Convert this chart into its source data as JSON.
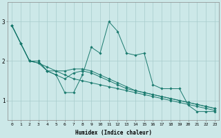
{
  "xlabel": "Humidex (Indice chaleur)",
  "ylabel": "",
  "bg_color": "#cce8e8",
  "line_color": "#1a7a6e",
  "xlim": [
    -0.5,
    23.5
  ],
  "ylim": [
    0.5,
    3.5
  ],
  "yticks": [
    1,
    2,
    3
  ],
  "xticks": [
    0,
    1,
    2,
    3,
    4,
    5,
    6,
    7,
    8,
    9,
    10,
    11,
    12,
    13,
    14,
    15,
    16,
    17,
    18,
    19,
    20,
    21,
    22,
    23
  ],
  "series": [
    [
      2.9,
      2.45,
      2.0,
      2.0,
      1.75,
      1.65,
      1.2,
      1.2,
      1.65,
      2.35,
      2.2,
      3.0,
      2.75,
      2.2,
      2.15,
      2.2,
      1.4,
      1.3,
      1.3,
      1.3,
      0.88,
      0.72,
      0.72,
      0.72
    ],
    [
      2.9,
      2.45,
      2.0,
      1.95,
      1.85,
      1.75,
      1.65,
      1.55,
      1.5,
      1.45,
      1.4,
      1.35,
      1.3,
      1.25,
      1.2,
      1.15,
      1.1,
      1.05,
      1.0,
      0.95,
      0.9,
      0.85,
      0.8,
      0.75
    ],
    [
      2.9,
      2.45,
      2.0,
      2.0,
      1.75,
      1.75,
      1.75,
      1.8,
      1.8,
      1.75,
      1.65,
      1.55,
      1.45,
      1.35,
      1.25,
      1.2,
      1.15,
      1.1,
      1.05,
      1.0,
      0.95,
      0.9,
      0.85,
      0.8
    ],
    [
      2.9,
      2.45,
      2.0,
      1.95,
      1.75,
      1.65,
      1.55,
      1.7,
      1.75,
      1.7,
      1.6,
      1.5,
      1.4,
      1.3,
      1.25,
      1.2,
      1.15,
      1.1,
      1.05,
      1.0,
      0.95,
      0.9,
      0.85,
      0.8
    ]
  ]
}
